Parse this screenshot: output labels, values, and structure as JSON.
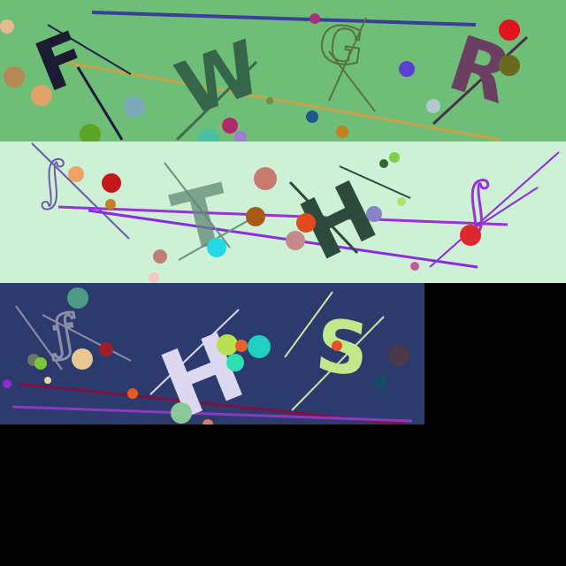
{
  "strips": [
    {
      "name": "strip-green",
      "background": "#6fbe77",
      "letters": [
        "F",
        "W",
        "G",
        "R"
      ]
    },
    {
      "name": "strip-mint",
      "background": "#cdf0d6",
      "letters": [
        "T",
        "H"
      ]
    },
    {
      "name": "strip-navy",
      "background": "#2c3a6e",
      "letters": [
        "H",
        "S"
      ]
    }
  ],
  "colors": {
    "black_area": "#000000",
    "accent_red": "#e0151f",
    "accent_purple": "#8a2be2",
    "accent_cyan": "#22d8e6"
  }
}
